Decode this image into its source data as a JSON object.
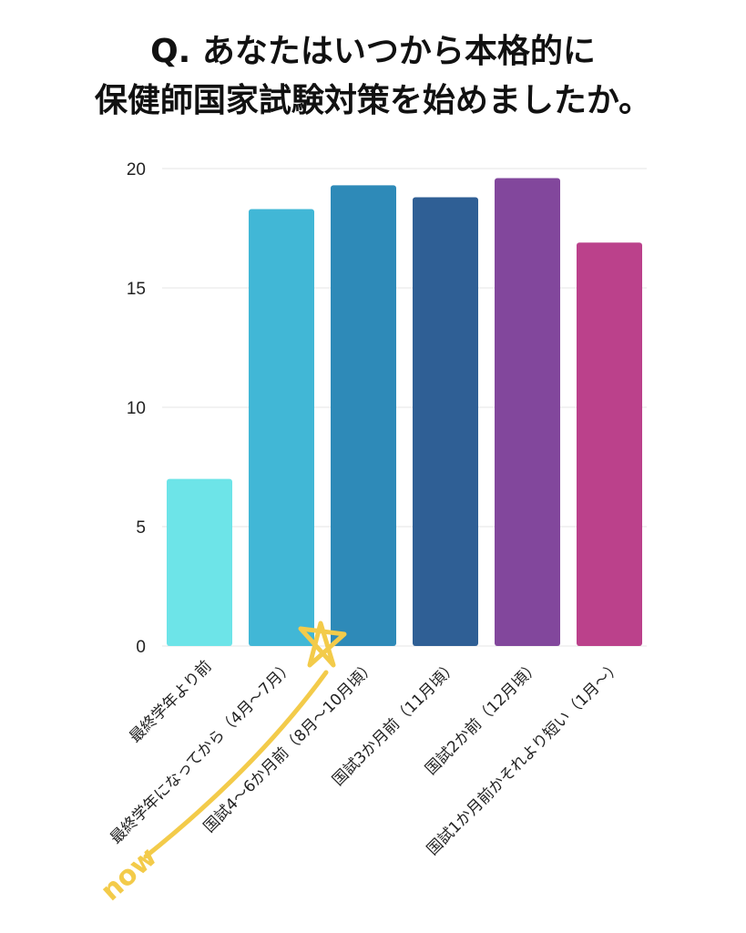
{
  "title_lines": [
    "Q. あなたはいつから本格的に",
    "保健師国家試験対策を始めましたか。"
  ],
  "annotation": {
    "text": "now",
    "color": "#f3cb4a",
    "icon": "star-icon"
  },
  "chart_data": {
    "type": "bar",
    "title": "Q. あなたはいつから本格的に保健師国家試験対策を始めましたか。",
    "xlabel": "",
    "ylabel": "",
    "ylim": [
      0,
      20
    ],
    "yticks": [
      0,
      5,
      10,
      15,
      20
    ],
    "grid": true,
    "categories": [
      "最終学年より前",
      "最終学年になってから（4月〜7月）",
      "国試4〜6か月前（8月〜10月頃）",
      "国試3か月前（11月頃）",
      "国試2か前（12月頃）",
      "国試1か月前かそれより短い（1月〜）"
    ],
    "values": [
      7,
      18.3,
      19.3,
      18.8,
      19.6,
      16.9
    ],
    "colors": [
      "#6de4e8",
      "#41b7d6",
      "#2e8ab8",
      "#2f5f95",
      "#82479c",
      "#bb418b"
    ]
  }
}
